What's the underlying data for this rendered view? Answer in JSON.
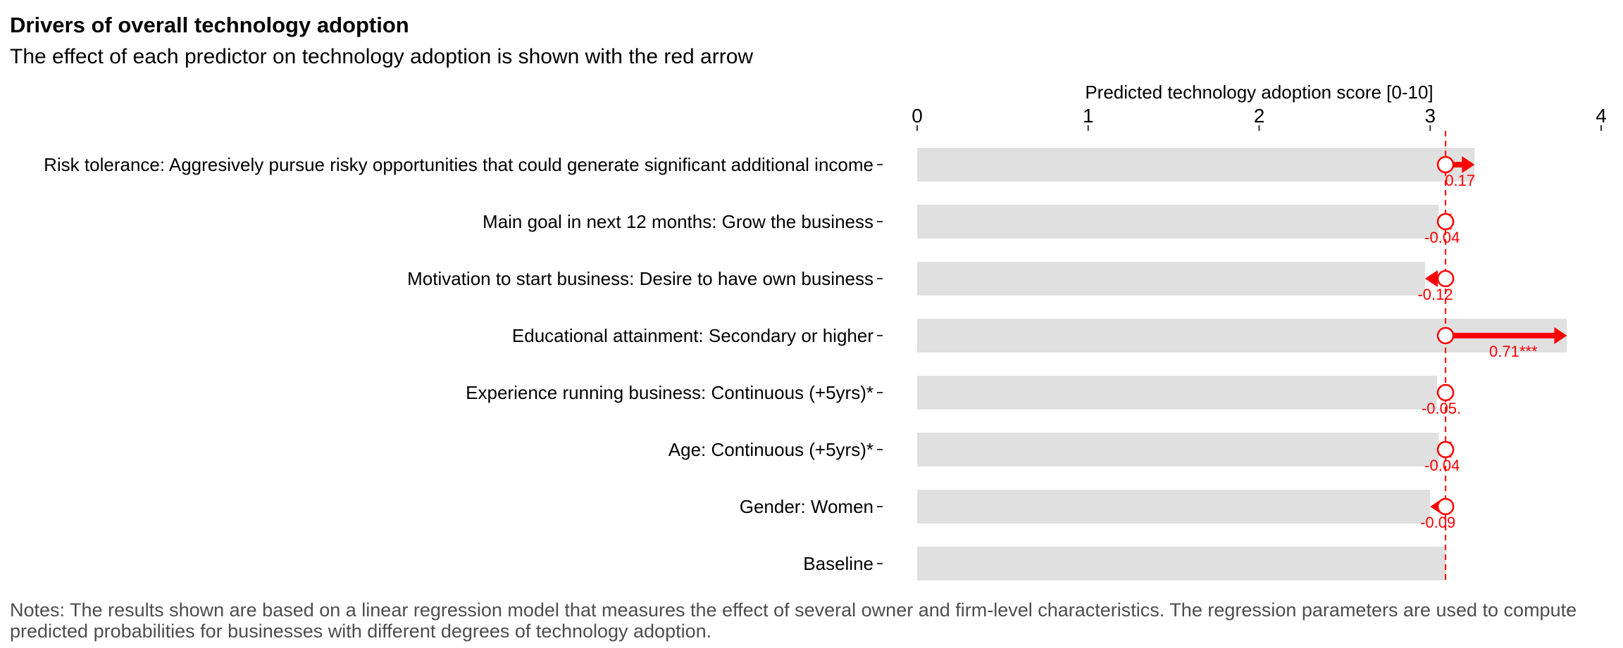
{
  "header": {
    "title": "Drivers of overall technology adoption",
    "subtitle": "The effect of each predictor on technology adoption is shown with the red arrow"
  },
  "notes": "Notes: The results shown are based on a linear regression model that measures the effect of several owner and firm-level characteristics. The regression parameters are used to compute predicted probabilities for businesses with different degrees of technology adoption.",
  "colors": {
    "bar": "#e0e0e0",
    "accent": "#ff0000",
    "notes": "#4d4d4d"
  },
  "chart_data": {
    "type": "bar",
    "xlabel": "Predicted technology adoption score [0-10]",
    "xlim": [
      0,
      4
    ],
    "xticks": [
      "0",
      "1",
      "2",
      "3",
      "4"
    ],
    "baseline": 3.09,
    "categories": [
      "Risk tolerance: Aggresively pursue risky opportunities that could generate significant additional income",
      "Main goal in next 12 months: Grow the business",
      "Motivation to start business: Desire to have own business",
      "Educational attainment: Secondary or higher",
      "Experience running business: Continuous (+5yrs)*",
      "Age: Continuous (+5yrs)*",
      "Gender: Women",
      "Baseline"
    ],
    "effects": [
      0.17,
      -0.04,
      -0.12,
      0.71,
      -0.05,
      -0.04,
      -0.09,
      null
    ],
    "effect_labels": [
      "0.17",
      "-0.04",
      "-0.12",
      "0.71***",
      "-0.05.",
      "-0.04",
      "-0.09",
      ""
    ]
  }
}
